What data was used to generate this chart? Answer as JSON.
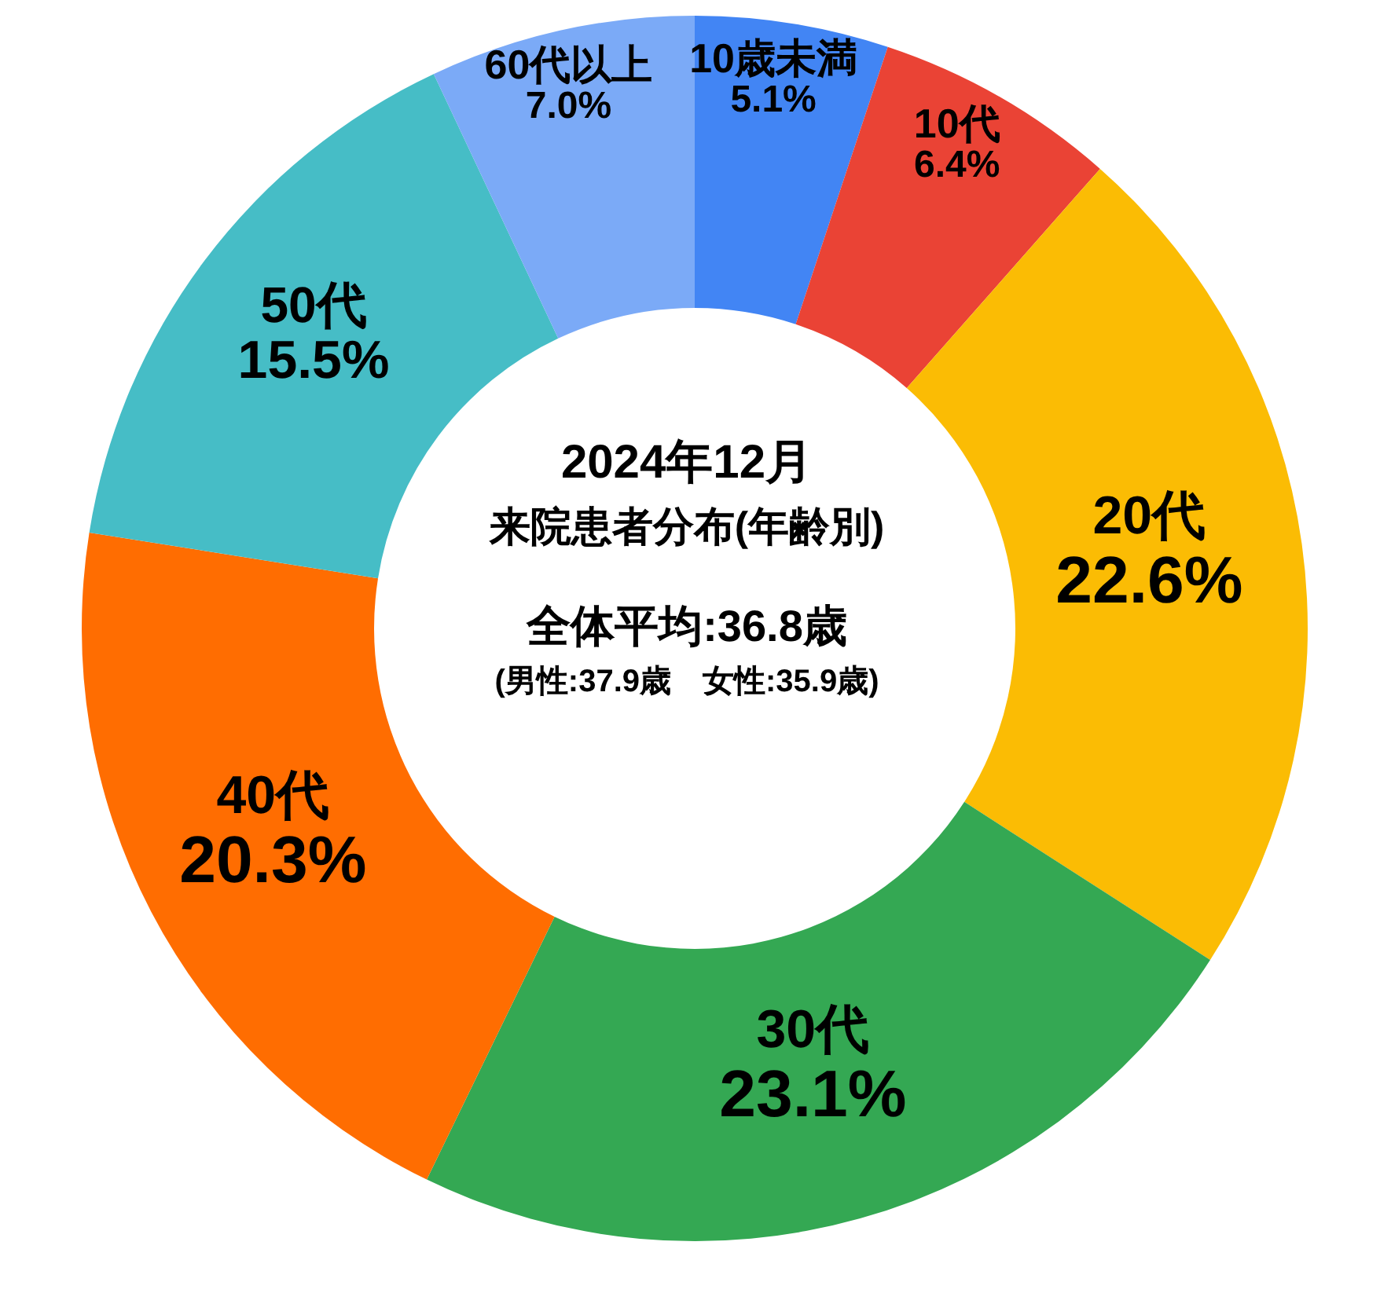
{
  "chart_data": {
    "type": "donut",
    "title": "2024年12月",
    "subtitle": "来院患者分布(年齢別)",
    "annotations": [
      "全体平均:36.8歳",
      "(男性:37.9歳　女性:35.9歳)"
    ],
    "categories": [
      "10歳未満",
      "10代",
      "20代",
      "30代",
      "40代",
      "50代",
      "60代以上"
    ],
    "values": [
      5.1,
      6.4,
      22.6,
      23.1,
      20.3,
      15.5,
      7.0
    ],
    "value_labels": [
      "5.1%",
      "6.4%",
      "22.6%",
      "23.1%",
      "20.3%",
      "15.5%",
      "7.0%"
    ],
    "colors": [
      "#4285f4",
      "#ea4335",
      "#fbbc04",
      "#34a853",
      "#ff6d01",
      "#46bdc6",
      "#7baaf7"
    ]
  }
}
